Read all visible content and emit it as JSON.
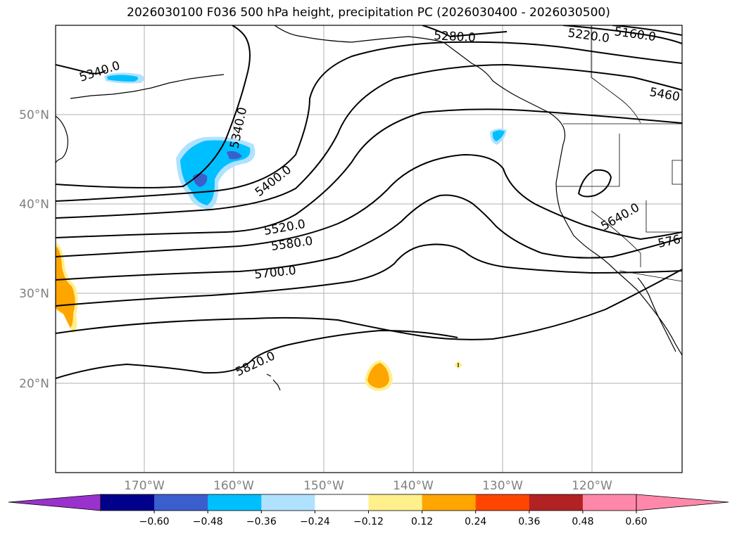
{
  "title": "2026030100 F036 500 hPa height, precipitation PC (2026030400 - 2026030500)",
  "map": {
    "lat_labels": [
      "50°N",
      "40°N",
      "30°N",
      "20°N"
    ],
    "lon_labels": [
      "170°W",
      "160°W",
      "150°W",
      "140°W",
      "130°W",
      "120°W"
    ],
    "contour_labels": [
      {
        "text": "5340.0",
        "id": "contour-label-5340-west"
      },
      {
        "text": "5340.0",
        "id": "contour-label-5340-center"
      },
      {
        "text": "5400.0",
        "id": "contour-label-5400"
      },
      {
        "text": "5520.0",
        "id": "contour-label-5520"
      },
      {
        "text": "5580.0",
        "id": "contour-label-5580"
      },
      {
        "text": "5700.0",
        "id": "contour-label-5700"
      },
      {
        "text": "5820.0",
        "id": "contour-label-5820"
      },
      {
        "text": "5220.0",
        "id": "contour-label-5220"
      },
      {
        "text": "5160.0",
        "id": "contour-label-5160"
      },
      {
        "text": "5280.0",
        "id": "contour-label-5280"
      },
      {
        "text": "5460",
        "id": "contour-label-5460"
      },
      {
        "text": "5640.0",
        "id": "contour-label-5640"
      },
      {
        "text": "576",
        "id": "contour-label-576"
      }
    ]
  },
  "colorbar": {
    "ticks": [
      "−0.60",
      "−0.48",
      "−0.36",
      "−0.24",
      "−0.12",
      "0.12",
      "0.24",
      "0.36",
      "0.48",
      "0.60"
    ],
    "colors": [
      "#9932cc",
      "#00008b",
      "#3a5fcd",
      "#00bfff",
      "#b0e2ff",
      "#ffffff",
      "#fff08c",
      "#ffa500",
      "#ff4500",
      "#b22222",
      "#ff88aa",
      "#ff88aa"
    ]
  }
}
